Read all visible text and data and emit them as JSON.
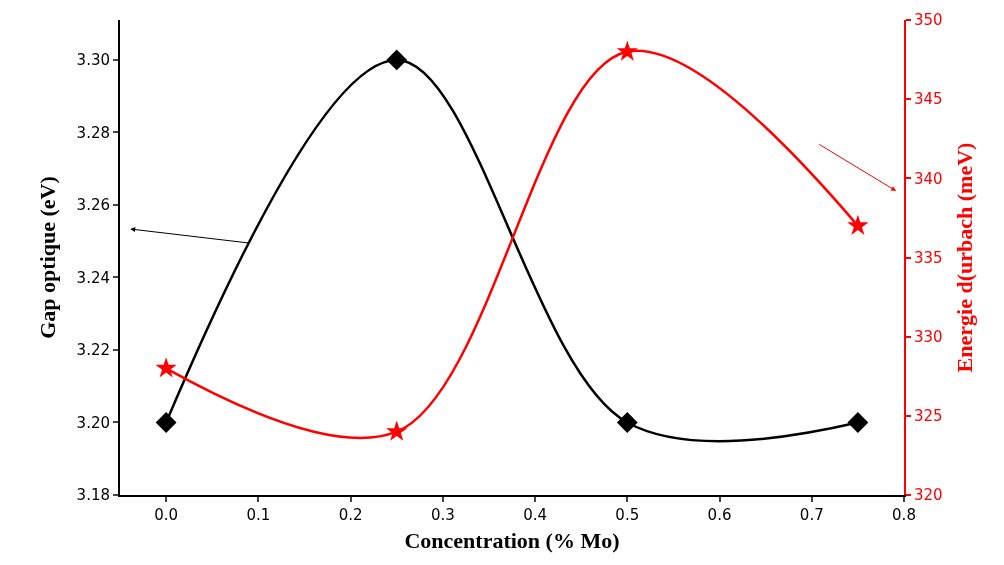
{
  "chart_data": {
    "type": "line",
    "xlabel": "Concentration (% Mo)",
    "ylabel": "Gap optique (eV)",
    "y2label": "Energie d(urbach (meV)",
    "x": [
      0,
      0.25,
      0.5,
      0.75
    ],
    "series": [
      {
        "color": "#000000",
        "values": [
          3.2,
          3.3,
          3.2,
          3.2
        ],
        "marker": "diamond",
        "axis": "y"
      },
      {
        "color": "#ff0000",
        "values": [
          328,
          324,
          348,
          337
        ],
        "marker": "star",
        "axis": "y2"
      }
    ],
    "xlim": [
      -0.05,
      0.8
    ],
    "xticks": [
      {
        "value": 0,
        "label": "0.0"
      },
      {
        "value": 0.1,
        "label": "0.1"
      },
      {
        "value": 0.2,
        "label": "0.2"
      },
      {
        "value": 0.3,
        "label": "0.3"
      },
      {
        "value": 0.4,
        "label": "0.4"
      },
      {
        "value": 0.5,
        "label": "0.5"
      },
      {
        "value": 0.6,
        "label": "0.6"
      },
      {
        "value": 0.7,
        "label": "0.7"
      },
      {
        "value": 0.8,
        "label": "0.8"
      }
    ],
    "ylim": [
      3.18,
      3.311
    ],
    "yticks": [
      {
        "value": 3.18,
        "label": "3.18"
      },
      {
        "value": 3.2,
        "label": "3.20"
      },
      {
        "value": 3.22,
        "label": "3.22"
      },
      {
        "value": 3.24,
        "label": "3.24"
      },
      {
        "value": 3.26,
        "label": "3.26"
      },
      {
        "value": 3.28,
        "label": "3.28"
      },
      {
        "value": 3.3,
        "label": "3.30"
      }
    ],
    "y2lim": [
      320,
      350
    ],
    "y2ticks": [
      320,
      325,
      330,
      335,
      340,
      345,
      350
    ]
  }
}
